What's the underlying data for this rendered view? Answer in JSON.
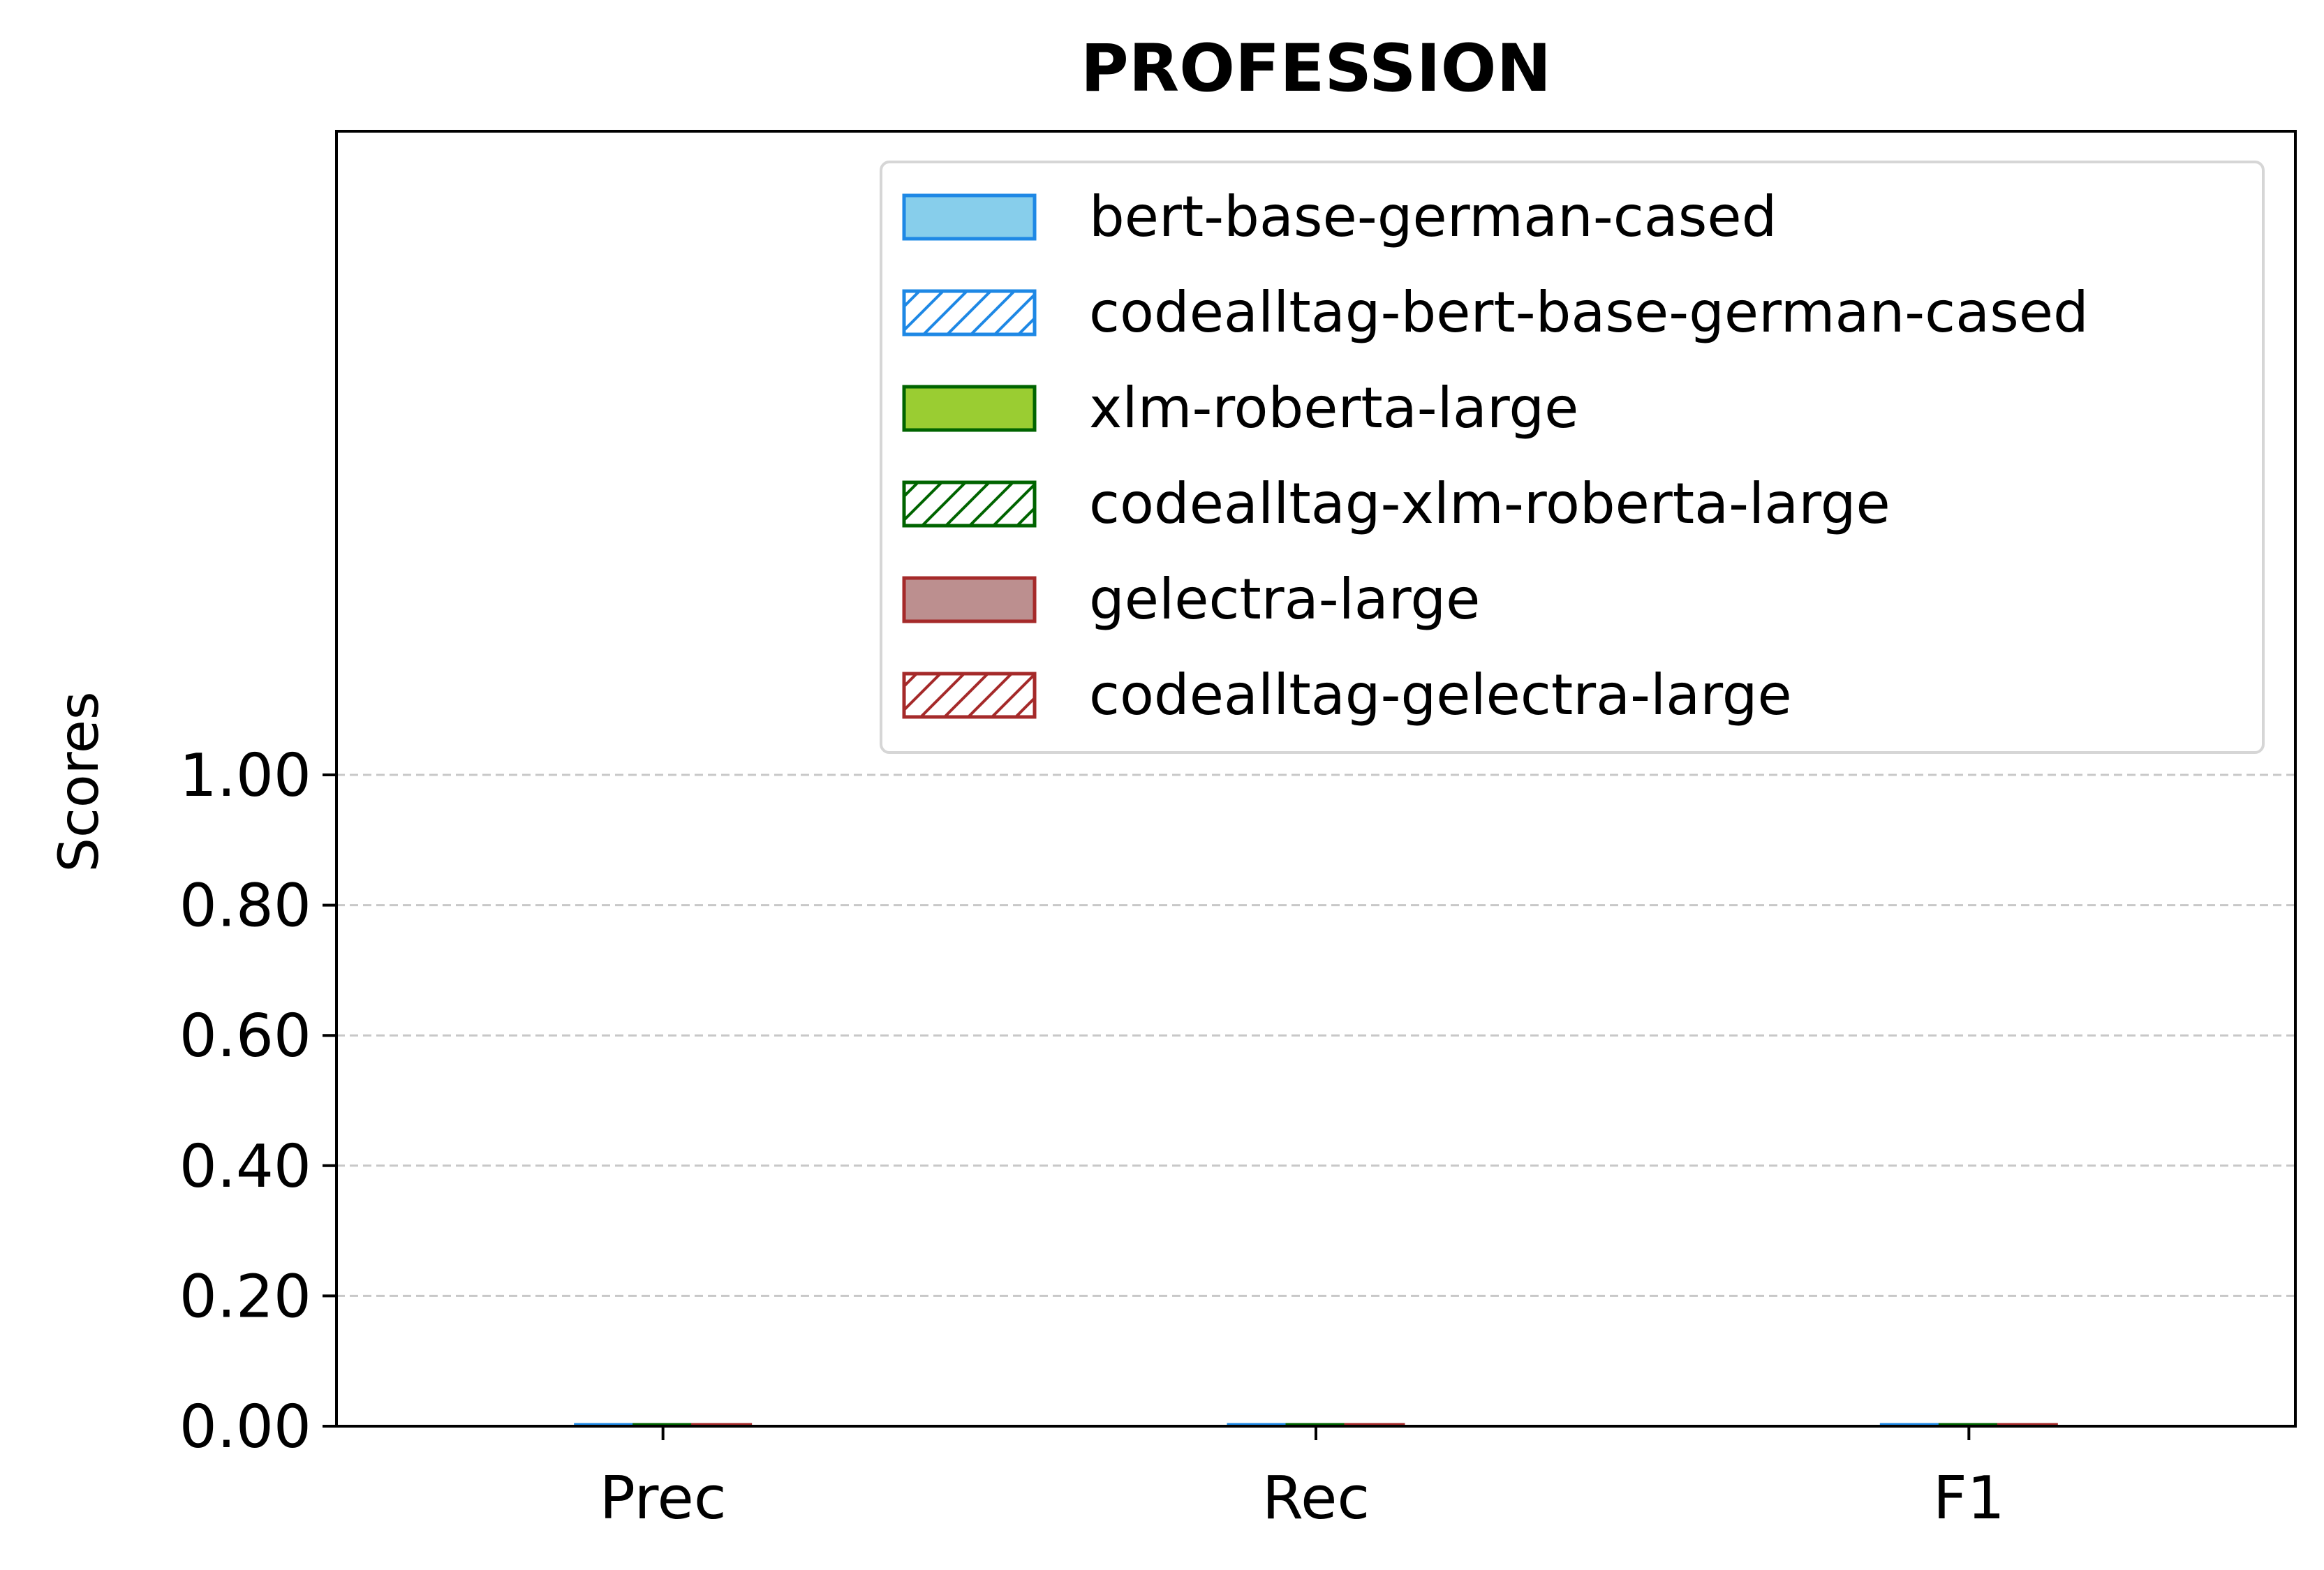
{
  "chart_data": {
    "type": "bar",
    "title": "PROFESSION",
    "xlabel": "",
    "ylabel": "Scores",
    "categories": [
      "Prec",
      "Rec",
      "F1"
    ],
    "ylim": [
      0,
      1.0
    ],
    "yticks": [
      "0.00",
      "0.20",
      "0.40",
      "0.60",
      "0.80",
      "1.00"
    ],
    "ytick_values": [
      0,
      0.2,
      0.4,
      0.6,
      0.8,
      1.0
    ],
    "grid": "y-dashed",
    "legend_position": "top-right",
    "series": [
      {
        "name": "bert-base-german-cased",
        "values": [
          0,
          0,
          0
        ],
        "face": "#87CEEB",
        "edge": "#1E88E5",
        "hatch": false
      },
      {
        "name": "codealltag-bert-base-german-cased",
        "values": [
          0,
          0,
          0
        ],
        "face": "#ffffff",
        "edge": "#1E88E5",
        "hatch": true
      },
      {
        "name": "xlm-roberta-large",
        "values": [
          0,
          0,
          0
        ],
        "face": "#9ACD32",
        "edge": "#006400",
        "hatch": false
      },
      {
        "name": "codealltag-xlm-roberta-large",
        "values": [
          0,
          0,
          0
        ],
        "face": "#ffffff",
        "edge": "#006400",
        "hatch": true
      },
      {
        "name": "gelectra-large",
        "values": [
          0,
          0,
          0
        ],
        "face": "#BC8F8F",
        "edge": "#A52A2A",
        "hatch": false
      },
      {
        "name": "codealltag-gelectra-large",
        "values": [
          0,
          0,
          0
        ],
        "face": "#ffffff",
        "edge": "#A52A2A",
        "hatch": true
      }
    ]
  }
}
